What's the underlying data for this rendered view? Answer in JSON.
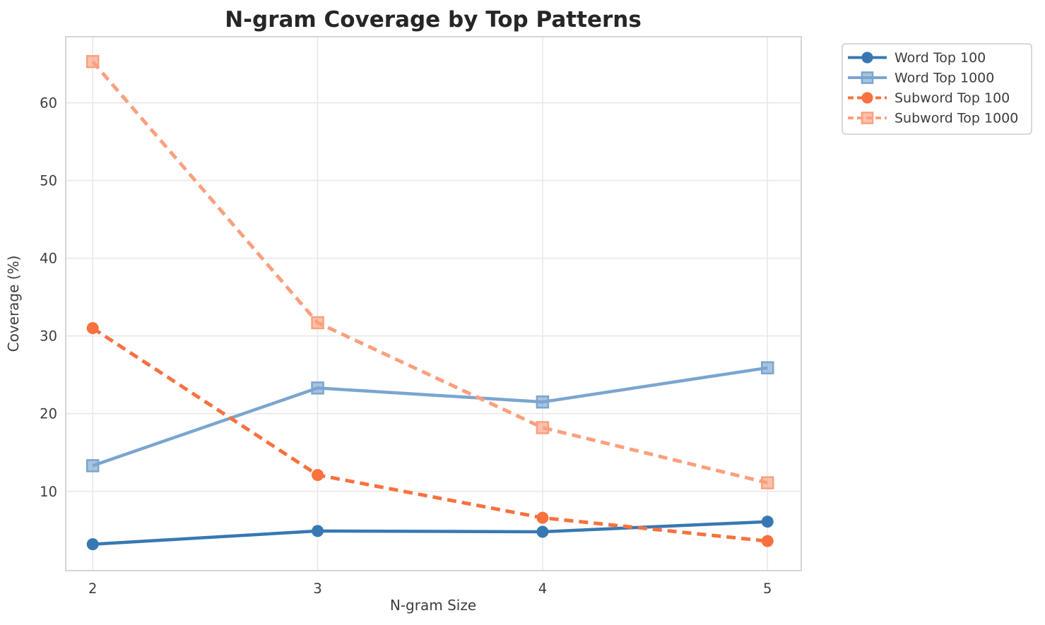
{
  "title": "N-gram Coverage by Top Patterns",
  "chart_data": {
    "type": "line",
    "x": [
      2,
      3,
      4,
      5
    ],
    "xticks": [
      2,
      3,
      4,
      5
    ],
    "yticks": [
      10,
      20,
      30,
      40,
      50,
      60
    ],
    "xlim": [
      1.88,
      5.15
    ],
    "ylim": [
      -0.2,
      68.5
    ],
    "grid": true,
    "legend_position": "outside-upper-right",
    "xlabel": "N-gram Size",
    "ylabel": "Coverage (%)",
    "series": [
      {
        "name": "Word Top 100",
        "color": "#3878b2",
        "line_style": "solid",
        "marker": "circle",
        "values": [
          3.2,
          4.9,
          4.8,
          6.1
        ]
      },
      {
        "name": "Word Top 1000",
        "color": "#7ba5d0",
        "line_style": "solid",
        "marker": "square",
        "values": [
          13.3,
          23.3,
          21.5,
          25.9
        ]
      },
      {
        "name": "Subword Top 100",
        "color": "#f8713f",
        "line_style": "dashed",
        "marker": "circle",
        "values": [
          31.0,
          12.1,
          6.6,
          3.6
        ]
      },
      {
        "name": "Subword Top 1000",
        "color": "#faa07e",
        "line_style": "dashed",
        "marker": "square",
        "values": [
          65.3,
          31.7,
          18.2,
          11.1
        ]
      }
    ],
    "colors": {
      "grid": "#e8e8e8",
      "spine": "#d5d5d5",
      "title_text": "#262626",
      "axis_text": "#3d3d3d",
      "background": "#ffffff"
    }
  }
}
